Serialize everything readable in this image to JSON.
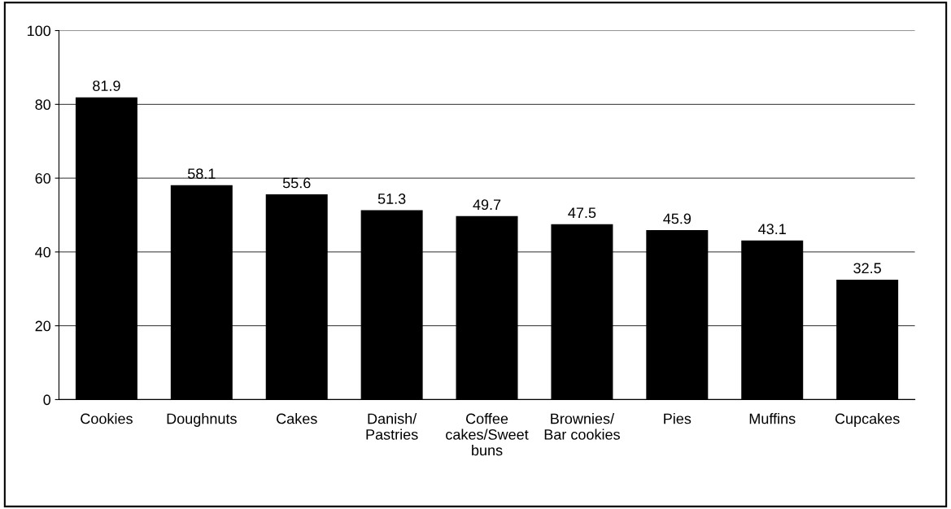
{
  "chart_data": {
    "type": "bar",
    "categories": [
      "Cookies",
      "Doughnuts",
      "Cakes",
      "Danish/\nPastries",
      "Coffee\ncakes/Sweet\nbuns",
      "Brownies/\nBar cookies",
      "Pies",
      "Muffins",
      "Cupcakes"
    ],
    "values": [
      81.9,
      58.1,
      55.6,
      51.3,
      49.7,
      47.5,
      45.9,
      43.1,
      32.5
    ],
    "color": "#000000",
    "ylim": [
      0,
      100
    ],
    "yticks": [
      0,
      20,
      40,
      60,
      80,
      100
    ],
    "grid": "y",
    "data_labels": true
  }
}
